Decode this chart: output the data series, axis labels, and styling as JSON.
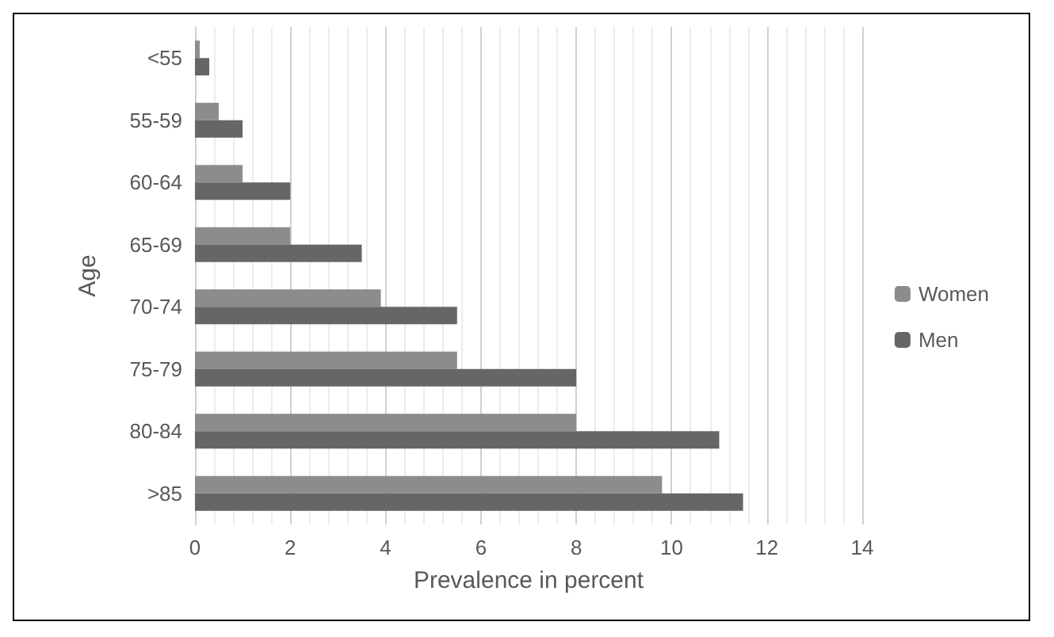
{
  "chart_data": {
    "type": "bar",
    "orientation": "horizontal",
    "xlabel": "Prevalence in percent",
    "ylabel": "Age",
    "categories": [
      "<55",
      "55-59",
      "60-64",
      "65-69",
      "70-74",
      "75-79",
      "80-84",
      ">85"
    ],
    "series": [
      {
        "name": "Women",
        "color": "#8c8c8c",
        "values": [
          0.1,
          0.5,
          1.0,
          2.0,
          3.9,
          5.5,
          8.0,
          9.8
        ]
      },
      {
        "name": "Men",
        "color": "#666666",
        "values": [
          0.3,
          1.0,
          2.0,
          3.5,
          5.5,
          8.0,
          11.0,
          11.5
        ]
      }
    ],
    "xlim": [
      0,
      14
    ],
    "xticks": [
      0,
      2,
      4,
      6,
      8,
      10,
      12,
      14
    ],
    "grid": true,
    "legend": "right"
  }
}
